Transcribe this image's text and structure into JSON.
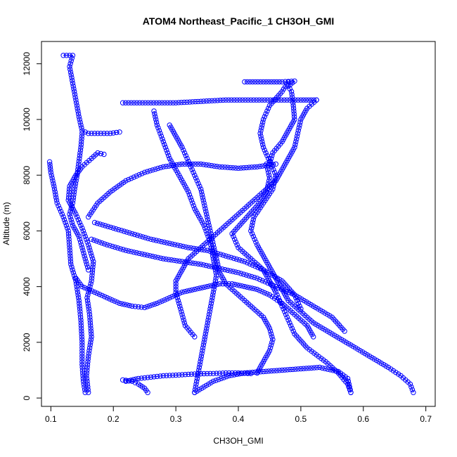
{
  "chart_data": {
    "type": "scatter",
    "title": "ATOM4 Northeast_Pacific_1 CH3OH_GMI",
    "xlabel": "CH3OH_GMI",
    "ylabel": "Altitude (m)",
    "xlim": [
      0.085,
      0.715
    ],
    "ylim": [
      -300,
      12800
    ],
    "xticks": [
      0.1,
      0.2,
      0.3,
      0.4,
      0.5,
      0.6,
      0.7
    ],
    "xtick_labels": [
      "0.1",
      "0.2",
      "0.3",
      "0.4",
      "0.5",
      "0.6",
      "0.7"
    ],
    "yticks": [
      0,
      2000,
      4000,
      6000,
      8000,
      10000,
      12000
    ],
    "ytick_labels": [
      "0",
      "2000",
      "4000",
      "6000",
      "8000",
      "10000",
      "12000"
    ],
    "grid": false,
    "marker": "open-circle",
    "color": "#0000ff",
    "series": [
      {
        "values": [
          [
            0.16,
            200
          ],
          [
            0.157,
            800
          ],
          [
            0.16,
            1500
          ],
          [
            0.165,
            2200
          ],
          [
            0.162,
            3000
          ],
          [
            0.158,
            3600
          ],
          [
            0.165,
            4200
          ],
          [
            0.168,
            4900
          ],
          [
            0.16,
            5500
          ],
          [
            0.15,
            6100
          ],
          [
            0.14,
            6600
          ],
          [
            0.128,
            7100
          ],
          [
            0.13,
            7600
          ],
          [
            0.14,
            8000
          ],
          [
            0.15,
            8300
          ],
          [
            0.165,
            8600
          ],
          [
            0.175,
            8800
          ],
          [
            0.185,
            8750
          ]
        ]
      },
      {
        "values": [
          [
            0.155,
            200
          ],
          [
            0.152,
            600
          ],
          [
            0.15,
            1200
          ],
          [
            0.15,
            2000
          ],
          [
            0.148,
            2800
          ],
          [
            0.145,
            3500
          ],
          [
            0.14,
            4200
          ],
          [
            0.132,
            4800
          ],
          [
            0.13,
            5400
          ],
          [
            0.128,
            6000
          ],
          [
            0.12,
            6500
          ],
          [
            0.11,
            7000
          ],
          [
            0.105,
            7600
          ],
          [
            0.1,
            8100
          ],
          [
            0.098,
            8480
          ]
        ]
      },
      {
        "values": [
          [
            0.12,
            12300
          ],
          [
            0.135,
            12300
          ],
          [
            0.13,
            11900
          ],
          [
            0.135,
            11300
          ],
          [
            0.14,
            10700
          ],
          [
            0.145,
            10100
          ],
          [
            0.15,
            9600
          ],
          [
            0.16,
            9500
          ],
          [
            0.175,
            9500
          ],
          [
            0.195,
            9500
          ],
          [
            0.21,
            9550
          ]
        ]
      },
      {
        "values": [
          [
            0.15,
            9500
          ],
          [
            0.148,
            9000
          ],
          [
            0.145,
            8500
          ],
          [
            0.142,
            8000
          ],
          [
            0.138,
            7500
          ],
          [
            0.135,
            7000
          ],
          [
            0.13,
            6600
          ],
          [
            0.135,
            6200
          ],
          [
            0.145,
            5800
          ],
          [
            0.15,
            5400
          ],
          [
            0.155,
            5000
          ],
          [
            0.16,
            4600
          ]
        ]
      },
      {
        "values": [
          [
            0.33,
            200
          ],
          [
            0.345,
            400
          ],
          [
            0.36,
            600
          ],
          [
            0.385,
            800
          ],
          [
            0.41,
            900
          ],
          [
            0.44,
            950
          ],
          [
            0.47,
            1000
          ],
          [
            0.5,
            1050
          ],
          [
            0.53,
            1100
          ],
          [
            0.56,
            950
          ],
          [
            0.575,
            700
          ],
          [
            0.578,
            400
          ],
          [
            0.58,
            200
          ]
        ]
      },
      {
        "values": [
          [
            0.58,
            200
          ],
          [
            0.575,
            500
          ],
          [
            0.56,
            900
          ],
          [
            0.54,
            1300
          ],
          [
            0.51,
            1800
          ],
          [
            0.49,
            2300
          ],
          [
            0.48,
            2800
          ],
          [
            0.47,
            3300
          ],
          [
            0.46,
            3800
          ],
          [
            0.45,
            4200
          ],
          [
            0.44,
            4600
          ],
          [
            0.42,
            5000
          ],
          [
            0.4,
            5400
          ],
          [
            0.39,
            5900
          ],
          [
            0.41,
            6400
          ],
          [
            0.43,
            6900
          ],
          [
            0.445,
            7400
          ],
          [
            0.45,
            7900
          ],
          [
            0.445,
            8400
          ]
        ]
      },
      {
        "values": [
          [
            0.68,
            200
          ],
          [
            0.675,
            500
          ],
          [
            0.66,
            800
          ],
          [
            0.64,
            1100
          ],
          [
            0.61,
            1500
          ],
          [
            0.58,
            1900
          ],
          [
            0.55,
            2300
          ],
          [
            0.52,
            2700
          ],
          [
            0.5,
            3100
          ],
          [
            0.48,
            3500
          ],
          [
            0.47,
            3900
          ],
          [
            0.46,
            4300
          ],
          [
            0.45,
            4700
          ],
          [
            0.44,
            5100
          ],
          [
            0.43,
            5500
          ],
          [
            0.42,
            6000
          ],
          [
            0.425,
            6500
          ],
          [
            0.44,
            7000
          ],
          [
            0.455,
            7500
          ],
          [
            0.46,
            8000
          ],
          [
            0.45,
            8500
          ],
          [
            0.44,
            9000
          ],
          [
            0.435,
            9500
          ],
          [
            0.44,
            10000
          ],
          [
            0.45,
            10500
          ],
          [
            0.47,
            11000
          ],
          [
            0.48,
            11350
          ]
        ]
      },
      {
        "values": [
          [
            0.41,
            11350
          ],
          [
            0.44,
            11350
          ],
          [
            0.47,
            11350
          ],
          [
            0.49,
            11380
          ],
          [
            0.48,
            11200
          ],
          [
            0.485,
            11000
          ],
          [
            0.488,
            10500
          ],
          [
            0.49,
            10000
          ],
          [
            0.48,
            9600
          ],
          [
            0.47,
            9200
          ],
          [
            0.455,
            8800
          ],
          [
            0.45,
            8400
          ]
        ]
      },
      {
        "values": [
          [
            0.215,
            10600
          ],
          [
            0.26,
            10600
          ],
          [
            0.3,
            10600
          ],
          [
            0.34,
            10650
          ],
          [
            0.38,
            10700
          ],
          [
            0.42,
            10700
          ],
          [
            0.46,
            10700
          ],
          [
            0.5,
            10700
          ],
          [
            0.525,
            10700
          ]
        ]
      },
      {
        "values": [
          [
            0.525,
            10700
          ],
          [
            0.51,
            10400
          ],
          [
            0.5,
            10000
          ],
          [
            0.495,
            9500
          ],
          [
            0.49,
            9000
          ],
          [
            0.48,
            8600
          ],
          [
            0.47,
            8200
          ],
          [
            0.46,
            7800
          ],
          [
            0.44,
            7400
          ],
          [
            0.42,
            7000
          ],
          [
            0.4,
            6600
          ],
          [
            0.38,
            6200
          ],
          [
            0.36,
            5800
          ],
          [
            0.34,
            5400
          ],
          [
            0.32,
            5000
          ],
          [
            0.31,
            4600
          ],
          [
            0.3,
            4200
          ],
          [
            0.3,
            3800
          ],
          [
            0.305,
            3400
          ],
          [
            0.31,
            3000
          ],
          [
            0.315,
            2600
          ],
          [
            0.33,
            2200
          ]
        ]
      },
      {
        "values": [
          [
            0.29,
            9800
          ],
          [
            0.3,
            9400
          ],
          [
            0.31,
            9000
          ],
          [
            0.32,
            8500
          ],
          [
            0.33,
            8000
          ],
          [
            0.34,
            7500
          ],
          [
            0.345,
            7000
          ],
          [
            0.35,
            6500
          ],
          [
            0.355,
            6000
          ],
          [
            0.36,
            5500
          ],
          [
            0.365,
            5000
          ],
          [
            0.37,
            4500
          ],
          [
            0.38,
            4100
          ],
          [
            0.4,
            3700
          ],
          [
            0.42,
            3300
          ],
          [
            0.44,
            2900
          ],
          [
            0.45,
            2500
          ],
          [
            0.455,
            2100
          ],
          [
            0.45,
            1700
          ],
          [
            0.44,
            1300
          ],
          [
            0.43,
            900
          ]
        ]
      },
      {
        "values": [
          [
            0.33,
            200
          ],
          [
            0.335,
            800
          ],
          [
            0.34,
            1400
          ],
          [
            0.345,
            2000
          ],
          [
            0.35,
            2600
          ],
          [
            0.355,
            3200
          ],
          [
            0.36,
            3800
          ],
          [
            0.365,
            4400
          ],
          [
            0.36,
            5000
          ],
          [
            0.355,
            5600
          ],
          [
            0.345,
            6200
          ],
          [
            0.33,
            6800
          ],
          [
            0.32,
            7400
          ],
          [
            0.305,
            8000
          ],
          [
            0.29,
            8600
          ],
          [
            0.28,
            9200
          ],
          [
            0.27,
            9800
          ],
          [
            0.265,
            10300
          ]
        ]
      },
      {
        "values": [
          [
            0.14,
            4300
          ],
          [
            0.15,
            4000
          ],
          [
            0.17,
            3800
          ],
          [
            0.19,
            3600
          ],
          [
            0.21,
            3400
          ],
          [
            0.23,
            3300
          ],
          [
            0.25,
            3250
          ],
          [
            0.27,
            3400
          ],
          [
            0.29,
            3600
          ],
          [
            0.31,
            3800
          ],
          [
            0.33,
            3900
          ],
          [
            0.35,
            4000
          ],
          [
            0.37,
            4100
          ],
          [
            0.39,
            4100
          ],
          [
            0.41,
            4000
          ],
          [
            0.43,
            3900
          ],
          [
            0.45,
            3700
          ],
          [
            0.47,
            3400
          ],
          [
            0.49,
            3000
          ],
          [
            0.51,
            2600
          ],
          [
            0.52,
            2200
          ]
        ]
      },
      {
        "values": [
          [
            0.16,
            6500
          ],
          [
            0.175,
            7000
          ],
          [
            0.195,
            7400
          ],
          [
            0.22,
            7800
          ],
          [
            0.25,
            8100
          ],
          [
            0.28,
            8300
          ],
          [
            0.31,
            8400
          ],
          [
            0.34,
            8400
          ],
          [
            0.37,
            8300
          ],
          [
            0.4,
            8250
          ],
          [
            0.43,
            8300
          ],
          [
            0.46,
            8400
          ]
        ]
      },
      {
        "values": [
          [
            0.17,
            6300
          ],
          [
            0.2,
            6100
          ],
          [
            0.23,
            5900
          ],
          [
            0.26,
            5700
          ],
          [
            0.29,
            5550
          ],
          [
            0.32,
            5400
          ],
          [
            0.35,
            5300
          ],
          [
            0.38,
            5100
          ],
          [
            0.41,
            4900
          ],
          [
            0.44,
            4600
          ],
          [
            0.47,
            4200
          ],
          [
            0.49,
            3700
          ],
          [
            0.5,
            3200
          ]
        ]
      },
      {
        "values": [
          [
            0.165,
            5700
          ],
          [
            0.19,
            5500
          ],
          [
            0.22,
            5300
          ],
          [
            0.25,
            5150
          ],
          [
            0.28,
            5000
          ],
          [
            0.31,
            4900
          ],
          [
            0.34,
            4800
          ],
          [
            0.37,
            4650
          ],
          [
            0.4,
            4500
          ],
          [
            0.43,
            4300
          ],
          [
            0.46,
            4000
          ],
          [
            0.49,
            3700
          ],
          [
            0.52,
            3300
          ],
          [
            0.55,
            2900
          ],
          [
            0.57,
            2400
          ]
        ]
      },
      {
        "values": [
          [
            0.22,
            600
          ],
          [
            0.24,
            700
          ],
          [
            0.26,
            750
          ],
          [
            0.28,
            800
          ],
          [
            0.3,
            820
          ],
          [
            0.32,
            850
          ],
          [
            0.34,
            870
          ],
          [
            0.36,
            880
          ],
          [
            0.38,
            900
          ],
          [
            0.4,
            900
          ],
          [
            0.42,
            880
          ]
        ]
      },
      {
        "values": [
          [
            0.255,
            200
          ],
          [
            0.25,
            350
          ],
          [
            0.24,
            500
          ],
          [
            0.23,
            600
          ],
          [
            0.215,
            650
          ]
        ]
      }
    ]
  }
}
